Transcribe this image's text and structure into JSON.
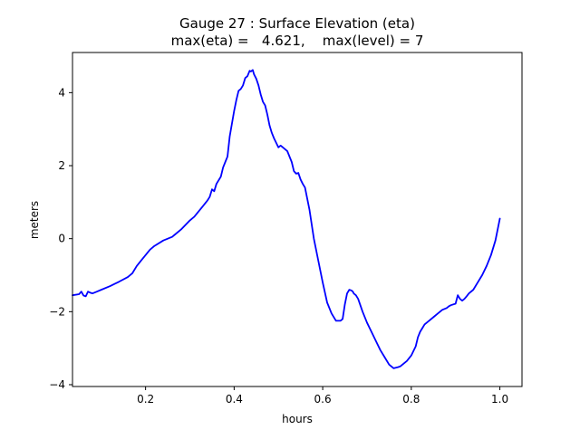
{
  "chart_data": {
    "type": "line",
    "title": "Gauge 27 : Surface Elevation (eta)",
    "subtitle": "max(eta) =   4.621,    max(level) = 7",
    "xlabel": "hours",
    "ylabel": "meters",
    "xlim": [
      0.035,
      1.05
    ],
    "ylim": [
      -4.05,
      5.1
    ],
    "xticks": [
      0.2,
      0.4,
      0.6,
      0.8,
      1.0
    ],
    "xtick_labels": [
      "0.2",
      "0.4",
      "0.6",
      "0.8",
      "1.0"
    ],
    "yticks": [
      -4,
      -2,
      0,
      2,
      4
    ],
    "ytick_labels": [
      "−4",
      "−2",
      "0",
      "2",
      "4"
    ],
    "grid": false,
    "series": [
      {
        "color": "#0000ff",
        "x": [
          0.035,
          0.05,
          0.055,
          0.06,
          0.065,
          0.07,
          0.075,
          0.08,
          0.09,
          0.1,
          0.12,
          0.14,
          0.16,
          0.17,
          0.18,
          0.19,
          0.2,
          0.21,
          0.22,
          0.24,
          0.25,
          0.26,
          0.27,
          0.28,
          0.3,
          0.31,
          0.32,
          0.33,
          0.34,
          0.345,
          0.35,
          0.355,
          0.36,
          0.37,
          0.375,
          0.38,
          0.385,
          0.39,
          0.4,
          0.405,
          0.41,
          0.415,
          0.42,
          0.425,
          0.43,
          0.435,
          0.438,
          0.442,
          0.445,
          0.45,
          0.455,
          0.46,
          0.465,
          0.47,
          0.475,
          0.48,
          0.485,
          0.49,
          0.5,
          0.505,
          0.51,
          0.52,
          0.53,
          0.535,
          0.54,
          0.545,
          0.55,
          0.555,
          0.56,
          0.57,
          0.58,
          0.59,
          0.6,
          0.61,
          0.62,
          0.63,
          0.64,
          0.645,
          0.65,
          0.655,
          0.66,
          0.665,
          0.668,
          0.67,
          0.675,
          0.68,
          0.69,
          0.7,
          0.71,
          0.72,
          0.73,
          0.74,
          0.75,
          0.76,
          0.77,
          0.775,
          0.78,
          0.79,
          0.8,
          0.81,
          0.815,
          0.82,
          0.825,
          0.83,
          0.84,
          0.85,
          0.86,
          0.87,
          0.88,
          0.885,
          0.89,
          0.9,
          0.905,
          0.91,
          0.915,
          0.92,
          0.925,
          0.93,
          0.94,
          0.95,
          0.96,
          0.97,
          0.98,
          0.99,
          1.0
        ],
        "y": [
          -1.55,
          -1.52,
          -1.45,
          -1.56,
          -1.58,
          -1.45,
          -1.48,
          -1.5,
          -1.45,
          -1.4,
          -1.3,
          -1.18,
          -1.05,
          -0.95,
          -0.75,
          -0.6,
          -0.45,
          -0.3,
          -0.2,
          -0.05,
          0.0,
          0.05,
          0.15,
          0.25,
          0.5,
          0.6,
          0.75,
          0.9,
          1.05,
          1.15,
          1.35,
          1.3,
          1.5,
          1.7,
          1.95,
          2.1,
          2.25,
          2.8,
          3.5,
          3.8,
          4.05,
          4.1,
          4.2,
          4.4,
          4.45,
          4.6,
          4.58,
          4.621,
          4.5,
          4.38,
          4.2,
          3.95,
          3.75,
          3.65,
          3.4,
          3.1,
          2.9,
          2.75,
          2.5,
          2.55,
          2.5,
          2.4,
          2.1,
          1.85,
          1.78,
          1.8,
          1.62,
          1.5,
          1.4,
          0.8,
          0.0,
          -0.6,
          -1.2,
          -1.75,
          -2.05,
          -2.25,
          -2.25,
          -2.2,
          -1.8,
          -1.5,
          -1.4,
          -1.42,
          -1.45,
          -1.5,
          -1.55,
          -1.65,
          -2.0,
          -2.3,
          -2.55,
          -2.8,
          -3.05,
          -3.25,
          -3.45,
          -3.55,
          -3.52,
          -3.5,
          -3.45,
          -3.35,
          -3.2,
          -2.95,
          -2.7,
          -2.55,
          -2.45,
          -2.35,
          -2.25,
          -2.15,
          -2.05,
          -1.95,
          -1.9,
          -1.85,
          -1.82,
          -1.78,
          -1.55,
          -1.65,
          -1.7,
          -1.65,
          -1.58,
          -1.5,
          -1.4,
          -1.2,
          -1.0,
          -0.75,
          -0.45,
          -0.05,
          0.55
        ]
      }
    ]
  }
}
